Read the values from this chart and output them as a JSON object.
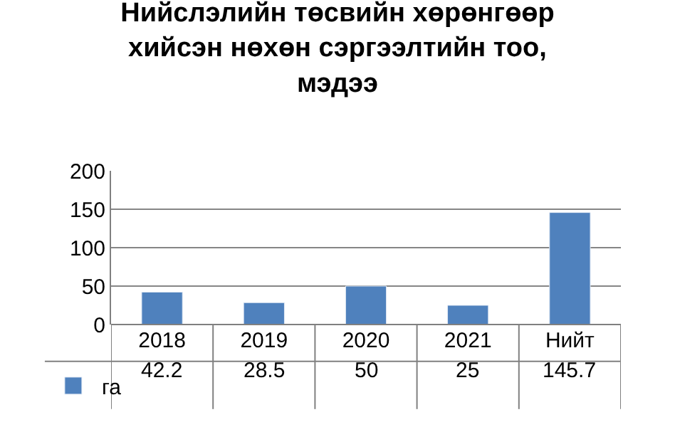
{
  "chart_data": {
    "type": "bar",
    "title": "Нийслэлийн төсвийн хөрөнгөөр\nхийсэн нөхөн сэргээлтийн тоо,\nмэдээ",
    "categories": [
      "2018",
      "2019",
      "2020",
      "2021",
      "Нийт"
    ],
    "series": [
      {
        "name": "га",
        "color": "#4f81bd",
        "values": [
          42.2,
          28.5,
          50,
          25,
          145.7
        ]
      }
    ],
    "ylim": [
      0,
      200
    ],
    "yticks": [
      0,
      50,
      100,
      150,
      200
    ],
    "grid": "y",
    "data_labels": true,
    "legend": "bottom left"
  }
}
